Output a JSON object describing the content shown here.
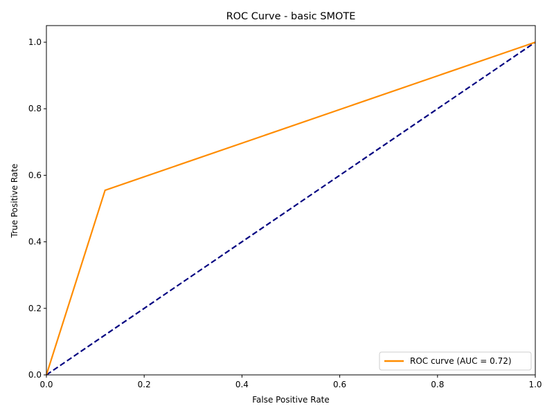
{
  "chart_data": {
    "type": "line",
    "title": "ROC Curve - basic SMOTE",
    "xlabel": "False Positive Rate",
    "ylabel": "True Positive Rate",
    "xlim": [
      0.0,
      1.0
    ],
    "ylim": [
      0.0,
      1.05
    ],
    "xticks": [
      "0.0",
      "0.2",
      "0.4",
      "0.6",
      "0.8",
      "1.0"
    ],
    "yticks": [
      "0.0",
      "0.2",
      "0.4",
      "0.6",
      "0.8",
      "1.0"
    ],
    "grid": false,
    "legend_position": "lower-right",
    "series": [
      {
        "name": "ROC curve (AUC = 0.72)",
        "color": "#ff8c00",
        "style": "solid",
        "x": [
          0.0,
          0.12,
          1.0
        ],
        "y": [
          0.0,
          0.555,
          1.0
        ]
      },
      {
        "color": "#000080",
        "style": "dashed",
        "x": [
          0.0,
          1.0
        ],
        "y": [
          0.0,
          1.0
        ]
      }
    ]
  }
}
